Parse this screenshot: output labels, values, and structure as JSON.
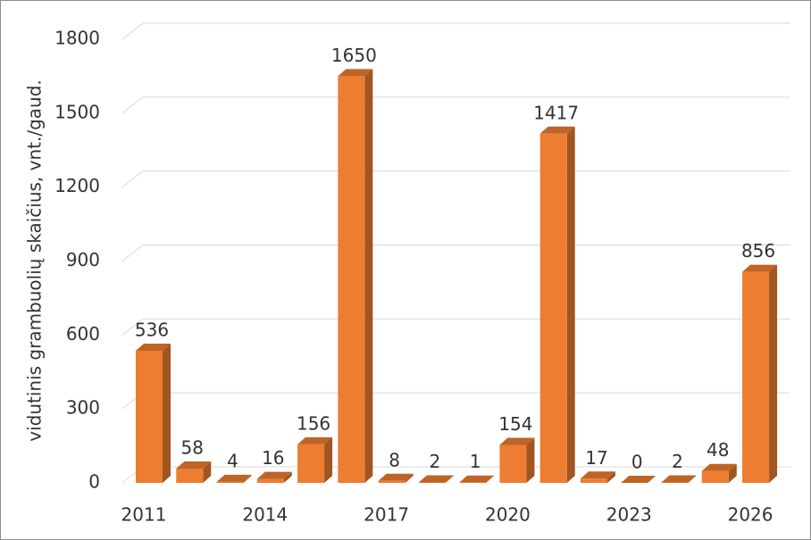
{
  "chart_data": {
    "type": "bar3d",
    "y_label": "vidutinis grambuolių skaičius, vnt./gaud.",
    "categories": [
      "2011",
      null,
      null,
      "2014",
      null,
      null,
      "2017",
      null,
      null,
      "2020",
      null,
      null,
      "2023",
      null,
      null,
      "2026"
    ],
    "values": [
      536,
      58,
      4,
      16,
      156,
      1650,
      8,
      2,
      1,
      154,
      1417,
      17,
      0,
      2,
      48,
      856
    ],
    "color": "#ed7d31",
    "ylim": [
      0,
      1800
    ],
    "yticks": [
      0,
      300,
      600,
      900,
      1200,
      1500,
      1800
    ],
    "grid": true
  }
}
